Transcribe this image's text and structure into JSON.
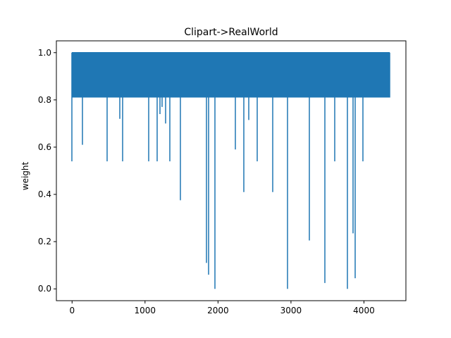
{
  "chart_data": {
    "type": "line",
    "title": "Clipart->RealWorld",
    "xlabel": "",
    "ylabel": "weight",
    "xlim": [
      -215,
      4575
    ],
    "ylim": [
      -0.05,
      1.05
    ],
    "grid": false,
    "legend": "none",
    "line_color": "#1f77b4",
    "x_ticks": [
      {
        "value": 0,
        "label": "0"
      },
      {
        "value": 1000,
        "label": "1000"
      },
      {
        "value": 2000,
        "label": "2000"
      },
      {
        "value": 3000,
        "label": "3000"
      },
      {
        "value": 4000,
        "label": "4000"
      }
    ],
    "y_ticks": [
      {
        "value": 0.0,
        "label": "0.0"
      },
      {
        "value": 0.2,
        "label": "0.2"
      },
      {
        "value": 0.4,
        "label": "0.4"
      },
      {
        "value": 0.6,
        "label": "0.6"
      },
      {
        "value": 0.8,
        "label": "0.8"
      },
      {
        "value": 1.0,
        "label": "1.0"
      }
    ],
    "series": [
      {
        "baseline_high": 1.0,
        "baseline_low": 0.81,
        "x_range": [
          0,
          4357
        ],
        "dips": [
          {
            "x": 0,
            "y": 0.54
          },
          {
            "x": 145,
            "y": 0.61
          },
          {
            "x": 485,
            "y": 0.54
          },
          {
            "x": 655,
            "y": 0.72
          },
          {
            "x": 690,
            "y": 0.54
          },
          {
            "x": 1050,
            "y": 0.54
          },
          {
            "x": 1170,
            "y": 0.54
          },
          {
            "x": 1200,
            "y": 0.74
          },
          {
            "x": 1230,
            "y": 0.77
          },
          {
            "x": 1280,
            "y": 0.7
          },
          {
            "x": 1335,
            "y": 0.54
          },
          {
            "x": 1485,
            "y": 0.375
          },
          {
            "x": 1840,
            "y": 0.11
          },
          {
            "x": 1875,
            "y": 0.06
          },
          {
            "x": 1960,
            "y": 0.0
          },
          {
            "x": 2240,
            "y": 0.59
          },
          {
            "x": 2350,
            "y": 0.41
          },
          {
            "x": 2420,
            "y": 0.715
          },
          {
            "x": 2540,
            "y": 0.54
          },
          {
            "x": 2745,
            "y": 0.41
          },
          {
            "x": 2955,
            "y": 0.0
          },
          {
            "x": 3255,
            "y": 0.205
          },
          {
            "x": 3465,
            "y": 0.025
          },
          {
            "x": 3600,
            "y": 0.54
          },
          {
            "x": 3775,
            "y": 0.0
          },
          {
            "x": 3855,
            "y": 0.235
          },
          {
            "x": 3875,
            "y": 0.045
          },
          {
            "x": 3985,
            "y": 0.54
          }
        ]
      }
    ]
  }
}
